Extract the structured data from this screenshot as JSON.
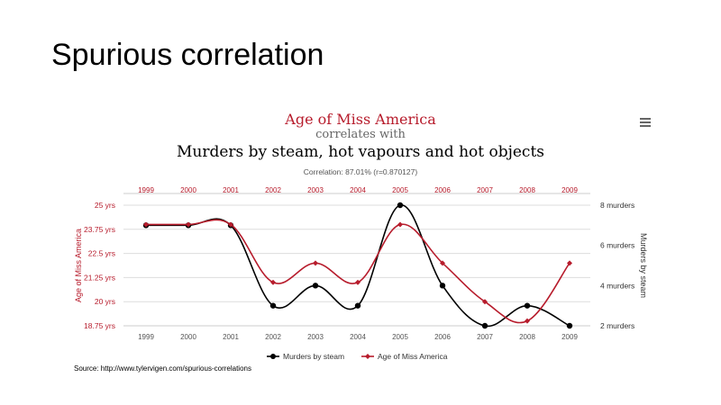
{
  "slide": {
    "title": "Spurious correlation",
    "source": "Source: http://www.tylervigen.com/spurious-correlations"
  },
  "colors": {
    "red": "#b71c2c",
    "black": "#000000",
    "grid": "#dddddd",
    "axis_text": "#555555"
  },
  "icons": {
    "menu": "hamburger-menu-icon"
  },
  "chart_data": {
    "type": "line",
    "title": "Age of Miss America",
    "subtitle": "correlates with",
    "title2": "Murders by steam, hot vapours and hot objects",
    "correlation": "Correlation: 87.01% (r=0.870127)",
    "x": [
      1999,
      2000,
      2001,
      2002,
      2003,
      2004,
      2005,
      2006,
      2007,
      2008,
      2009
    ],
    "x_labels": [
      "1999",
      "2000",
      "2001",
      "2002",
      "2003",
      "2004",
      "2005",
      "2006",
      "2007",
      "2008",
      "2009"
    ],
    "series": [
      {
        "name": "Murders by steam",
        "axis": "right",
        "color": "#000000",
        "values": [
          7,
          7,
          7,
          3,
          4,
          3,
          8,
          4,
          2,
          3,
          2
        ]
      },
      {
        "name": "Age of Miss America",
        "axis": "left",
        "color": "#b71c2c",
        "values": [
          24,
          24,
          24,
          21,
          22,
          21,
          24,
          22,
          20,
          19,
          22
        ]
      }
    ],
    "ylabel_left": "Age of Miss America",
    "ylabel_right": "Murders by steam",
    "ylim_left": [
      18.75,
      25
    ],
    "yticks_left": [
      "25 yrs",
      "23.75 yrs",
      "22.5 yrs",
      "21.25 yrs",
      "20 yrs",
      "18.75 yrs"
    ],
    "ylim_right": [
      2,
      8
    ],
    "yticks_right": [
      "8 murders",
      "6 murders",
      "4 murders",
      "2 murders"
    ],
    "legend": [
      "Murders by steam",
      "Age of Miss America"
    ]
  }
}
